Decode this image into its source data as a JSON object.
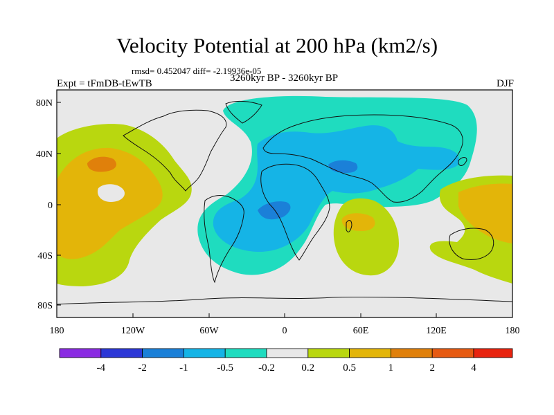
{
  "title": "Velocity Potential at 200 hPa (km2/s)",
  "stats": "rmsd= 0.452047 diff= -2.19936e-05",
  "left_label": "Expt = tFmDB-tEwTB",
  "center_label": "3260kyr BP - 3260kyr BP",
  "right_label": "DJF",
  "lat_labels": [
    "80N",
    "40N",
    "0",
    "40S",
    "80S"
  ],
  "lon_labels": [
    "180",
    "120W",
    "60W",
    "0",
    "60E",
    "120E",
    "180"
  ],
  "colorbar": {
    "colors": [
      "#8a2be2",
      "#2c37d6",
      "#1b80d8",
      "#15b4e6",
      "#1fdcbf",
      "#e8e8e8",
      "#b9d70f",
      "#e3b509",
      "#e0800b",
      "#e65a12",
      "#e8230f"
    ],
    "labels": [
      "-4",
      "-2",
      "-1",
      "-0.5",
      "-0.2",
      "0.2",
      "0.5",
      "1",
      "2",
      "4"
    ]
  },
  "colors": {
    "land_background": "#e8e8e8",
    "neg_weak": "#1fdcbf",
    "neg_mid": "#15b4e6",
    "neg_strong": "#1b80d8",
    "pos_weak": "#b9d70f",
    "pos_mid": "#e3b509",
    "pos_strong": "#e0800b"
  }
}
